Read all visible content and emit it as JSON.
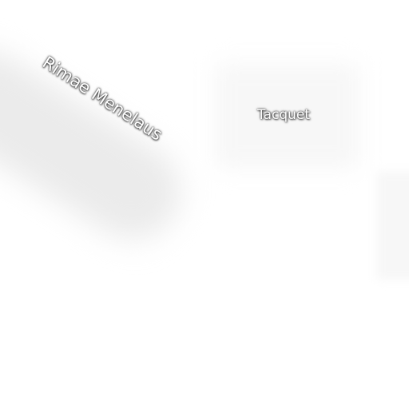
{
  "map": {
    "labels": {
      "rimae_menelaus": "Rimae Menelaus",
      "tacquet": "Tacquet"
    },
    "colors": {
      "background": "#ffffff",
      "label_text": "#ffffff",
      "label_shadow": "#000000"
    }
  }
}
